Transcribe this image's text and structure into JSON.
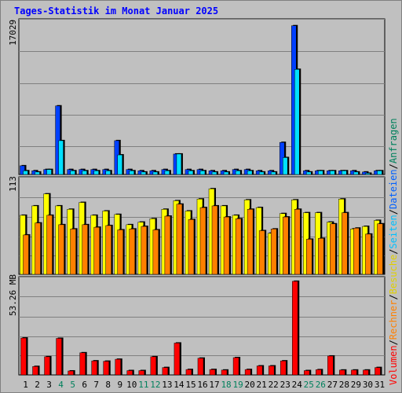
{
  "title": "Tages-Statistik im Monat Januar 2025",
  "y_labels": {
    "anfragen_max": "17029",
    "besuche_max": "113",
    "volumen_max": "53.26 MB"
  },
  "legend": {
    "volumen": "Volumen",
    "rechner": "Rechner",
    "besuche": "Besuche",
    "seiten": "Seiten",
    "dateien": "Dateien",
    "anfragen": "Anfragen",
    "separator": "/"
  },
  "colors": {
    "background": "#c0c0c0",
    "anfragen": "#0040ff",
    "dateien": "#00e0ff",
    "seiten": "#00c0ff",
    "besuche": "#ffff00",
    "rechner": "#ff8000",
    "volumen": "#ff0000",
    "title": "#0000ff",
    "weekend_day": "#00805c",
    "gridline": "#808080"
  },
  "chart_data": {
    "type": "bar",
    "title": "Tages-Statistik im Monat Januar 2025",
    "categories": [
      "1",
      "2",
      "3",
      "4",
      "5",
      "6",
      "7",
      "8",
      "9",
      "10",
      "11",
      "12",
      "13",
      "14",
      "15",
      "16",
      "17",
      "18",
      "19",
      "20",
      "21",
      "22",
      "23",
      "24",
      "25",
      "26",
      "27",
      "28",
      "29",
      "30",
      "31"
    ],
    "weekend_days": [
      "4",
      "5",
      "11",
      "12",
      "18",
      "19",
      "25",
      "26"
    ],
    "panels": [
      {
        "label": "17029",
        "ylim": [
          0,
          17029
        ],
        "series": [
          {
            "name": "Anfragen",
            "values": [
              980,
              420,
              560,
              7700,
              560,
              560,
              560,
              560,
              3800,
              560,
              420,
              420,
              560,
              2300,
              560,
              560,
              420,
              420,
              560,
              560,
              420,
              420,
              3600,
              16700,
              420,
              420,
              420,
              420,
              420,
              280,
              420
            ]
          },
          {
            "name": "Dateien",
            "values": [
              420,
              280,
              560,
              3800,
              420,
              420,
              420,
              420,
              2200,
              420,
              280,
              280,
              420,
              2300,
              420,
              420,
              280,
              280,
              420,
              420,
              280,
              280,
              1900,
              11800,
              280,
              420,
              420,
              420,
              280,
              140,
              420
            ]
          }
        ]
      },
      {
        "label": "113",
        "ylim": [
          0,
          113
        ],
        "series": [
          {
            "name": "Besuche",
            "values": [
              69,
              80,
              94,
              80,
              76,
              84,
              69,
              74,
              70,
              58,
              61,
              65,
              76,
              86,
              74,
              88,
              100,
              80,
              69,
              87,
              78,
              48,
              71,
              87,
              72,
              72,
              61,
              88,
              53,
              56,
              63
            ]
          },
          {
            "name": "Rechner",
            "values": [
              46,
              60,
              69,
              58,
              53,
              58,
              55,
              57,
              52,
              53,
              56,
              52,
              68,
              82,
              64,
              78,
              80,
              67,
              65,
              76,
              51,
              53,
              67,
              76,
              41,
              42,
              59,
              72,
              54,
              47,
              59
            ]
          }
        ]
      },
      {
        "label": "53.26 MB",
        "ylim": [
          0,
          53.26
        ],
        "series": [
          {
            "name": "Volumen",
            "values": [
              20.5,
              4.7,
              10.1,
              20.3,
              2.2,
              12.3,
              7.8,
              7.6,
              8.7,
              2.4,
              2.4,
              10.1,
              4.1,
              17.7,
              3.0,
              9.3,
              3.0,
              2.7,
              9.6,
              3.0,
              5.0,
              5.0,
              7.8,
              52.0,
              2.4,
              2.9,
              10.5,
              2.7,
              2.7,
              2.7,
              4.1
            ]
          }
        ]
      }
    ]
  }
}
